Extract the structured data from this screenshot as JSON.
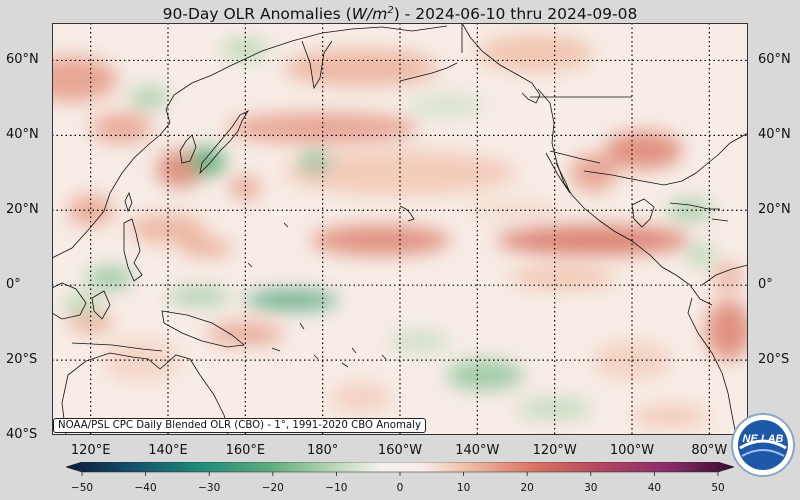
{
  "title": {
    "prefix": "90-Day OLR Anomalies (",
    "unit_main": "W/m",
    "unit_exp": "2",
    "suffix": ") - 2024-06-10 thru 2024-09-08"
  },
  "caption": "NOAA/PSL CPC Daily Blended OLR (CBO) - 1°, 1991-2020 CBO Anomaly",
  "logo": {
    "text": "NE LAB"
  },
  "map": {
    "lon_range": [
      110,
      290
    ],
    "lat_range": [
      -40,
      70
    ],
    "lat_ticks": [
      {
        "lat": 60,
        "label": "60°N"
      },
      {
        "lat": 40,
        "label": "40°N"
      },
      {
        "lat": 20,
        "label": "20°N"
      },
      {
        "lat": 0,
        "label": "0°"
      },
      {
        "lat": -20,
        "label": "20°S"
      },
      {
        "lat": -40,
        "label": "40°S"
      }
    ],
    "lon_ticks": [
      {
        "lon": 120,
        "label": "120°E"
      },
      {
        "lon": 140,
        "label": "140°E"
      },
      {
        "lon": 160,
        "label": "160°E"
      },
      {
        "lon": 180,
        "label": "180°"
      },
      {
        "lon": 200,
        "label": "160°W"
      },
      {
        "lon": 220,
        "label": "140°W"
      },
      {
        "lon": 240,
        "label": "120°W"
      },
      {
        "lon": 260,
        "label": "100°W"
      },
      {
        "lon": 280,
        "label": "80°W"
      }
    ],
    "grid_lons": [
      120,
      140,
      160,
      180,
      200,
      220,
      240,
      260,
      280
    ],
    "grid_lats": [
      60,
      40,
      20,
      0,
      -20,
      -40
    ],
    "anomaly_blobs": [
      {
        "lon": 115,
        "lat": 55,
        "rlon": 12,
        "rlat": 6,
        "value": 15
      },
      {
        "lon": 190,
        "lat": 58,
        "rlon": 20,
        "rlat": 5,
        "value": 12
      },
      {
        "lon": 235,
        "lat": 62,
        "rlon": 15,
        "rlat": 5,
        "value": 10
      },
      {
        "lon": 180,
        "lat": 42,
        "rlon": 25,
        "rlat": 4,
        "value": 15
      },
      {
        "lon": 143,
        "lat": 31,
        "rlon": 6,
        "rlat": 5,
        "value": 18
      },
      {
        "lon": 128,
        "lat": 42,
        "rlon": 8,
        "rlat": 4,
        "value": 14
      },
      {
        "lon": 200,
        "lat": 30,
        "rlon": 30,
        "rlat": 6,
        "value": 9
      },
      {
        "lon": 160,
        "lat": 26,
        "rlon": 4,
        "rlat": 3,
        "value": 15
      },
      {
        "lon": 150,
        "lat": 33,
        "rlon": 5,
        "rlat": 4,
        "value": -20
      },
      {
        "lon": 178,
        "lat": 33,
        "rlon": 4,
        "rlat": 3,
        "value": -15
      },
      {
        "lon": 135,
        "lat": 50,
        "rlon": 5,
        "rlat": 3,
        "value": -12
      },
      {
        "lon": 160,
        "lat": 63,
        "rlon": 6,
        "rlat": 3,
        "value": -10
      },
      {
        "lon": 212,
        "lat": 48,
        "rlon": 10,
        "rlat": 3,
        "value": -7
      },
      {
        "lon": 120,
        "lat": 20,
        "rlon": 6,
        "rlat": 4,
        "value": 14
      },
      {
        "lon": 140,
        "lat": 15,
        "rlon": 10,
        "rlat": 4,
        "value": 12
      },
      {
        "lon": 195,
        "lat": 12,
        "rlon": 18,
        "rlat": 4,
        "value": 18
      },
      {
        "lon": 250,
        "lat": 12,
        "rlon": 25,
        "rlat": 4,
        "value": 20
      },
      {
        "lon": 263,
        "lat": 36,
        "rlon": 10,
        "rlat": 5,
        "value": 18
      },
      {
        "lon": 250,
        "lat": 30,
        "rlon": 6,
        "rlat": 5,
        "value": 15
      },
      {
        "lon": 275,
        "lat": 20,
        "rlon": 6,
        "rlat": 3,
        "value": -12
      },
      {
        "lon": 278,
        "lat": 8,
        "rlon": 4,
        "rlat": 3,
        "value": -10
      },
      {
        "lon": 242,
        "lat": 2,
        "rlon": 14,
        "rlat": 3,
        "value": 10
      },
      {
        "lon": 172,
        "lat": -4,
        "rlon": 12,
        "rlat": 2.5,
        "value": -22
      },
      {
        "lon": 125,
        "lat": 2,
        "rlon": 6,
        "rlat": 3,
        "value": -14
      },
      {
        "lon": 148,
        "lat": -3,
        "rlon": 8,
        "rlat": 2.5,
        "value": -12
      },
      {
        "lon": 150,
        "lat": 10,
        "rlon": 7,
        "rlat": 2.5,
        "value": 13
      },
      {
        "lon": 160,
        "lat": -13,
        "rlon": 10,
        "rlat": 3,
        "value": 14
      },
      {
        "lon": 120,
        "lat": -10,
        "rlon": 6,
        "rlat": 3,
        "value": 12
      },
      {
        "lon": 118,
        "lat": -5,
        "rlon": 5,
        "rlat": 3,
        "value": -10
      },
      {
        "lon": 133,
        "lat": -20,
        "rlon": 10,
        "rlat": 6,
        "value": 7
      },
      {
        "lon": 222,
        "lat": -24,
        "rlon": 10,
        "rlat": 4,
        "value": -14
      },
      {
        "lon": 205,
        "lat": -15,
        "rlon": 8,
        "rlat": 3,
        "value": -8
      },
      {
        "lon": 240,
        "lat": -33,
        "rlon": 10,
        "rlat": 3,
        "value": -9
      },
      {
        "lon": 190,
        "lat": -30,
        "rlon": 8,
        "rlat": 4,
        "value": 8
      },
      {
        "lon": 285,
        "lat": -12,
        "rlon": 6,
        "rlat": 8,
        "value": 18
      },
      {
        "lon": 260,
        "lat": -20,
        "rlon": 10,
        "rlat": 5,
        "value": 8
      },
      {
        "lon": 270,
        "lat": -35,
        "rlon": 10,
        "rlat": 3,
        "value": 9
      },
      {
        "lon": 285,
        "lat": 2,
        "rlon": 4,
        "rlat": 4,
        "value": 12
      },
      {
        "lon": 230,
        "lat": 20,
        "rlon": 12,
        "rlat": 3,
        "value": 6
      }
    ]
  },
  "colorbar": {
    "range": [
      -50,
      50
    ],
    "ticks": [
      {
        "value": -50,
        "label": "−50"
      },
      {
        "value": -40,
        "label": "−40"
      },
      {
        "value": -30,
        "label": "−30"
      },
      {
        "value": -20,
        "label": "−20"
      },
      {
        "value": -10,
        "label": "−10"
      },
      {
        "value": 0,
        "label": "0"
      },
      {
        "value": 10,
        "label": "10"
      },
      {
        "value": 20,
        "label": "20"
      },
      {
        "value": 30,
        "label": "30"
      },
      {
        "value": 40,
        "label": "40"
      },
      {
        "value": 50,
        "label": "50"
      }
    ],
    "stops": [
      {
        "value": -50,
        "color": "#0b1a3b"
      },
      {
        "value": -40,
        "color": "#15506a"
      },
      {
        "value": -30,
        "color": "#1f8a78"
      },
      {
        "value": -20,
        "color": "#5aa97a"
      },
      {
        "value": -10,
        "color": "#b7d7b5"
      },
      {
        "value": -3,
        "color": "#f4f1ee"
      },
      {
        "value": 3,
        "color": "#f8ece8"
      },
      {
        "value": 10,
        "color": "#f1bfa9"
      },
      {
        "value": 20,
        "color": "#d87462"
      },
      {
        "value": 30,
        "color": "#b24660"
      },
      {
        "value": 40,
        "color": "#8b2d6b"
      },
      {
        "value": 50,
        "color": "#3a0a2c"
      }
    ]
  }
}
